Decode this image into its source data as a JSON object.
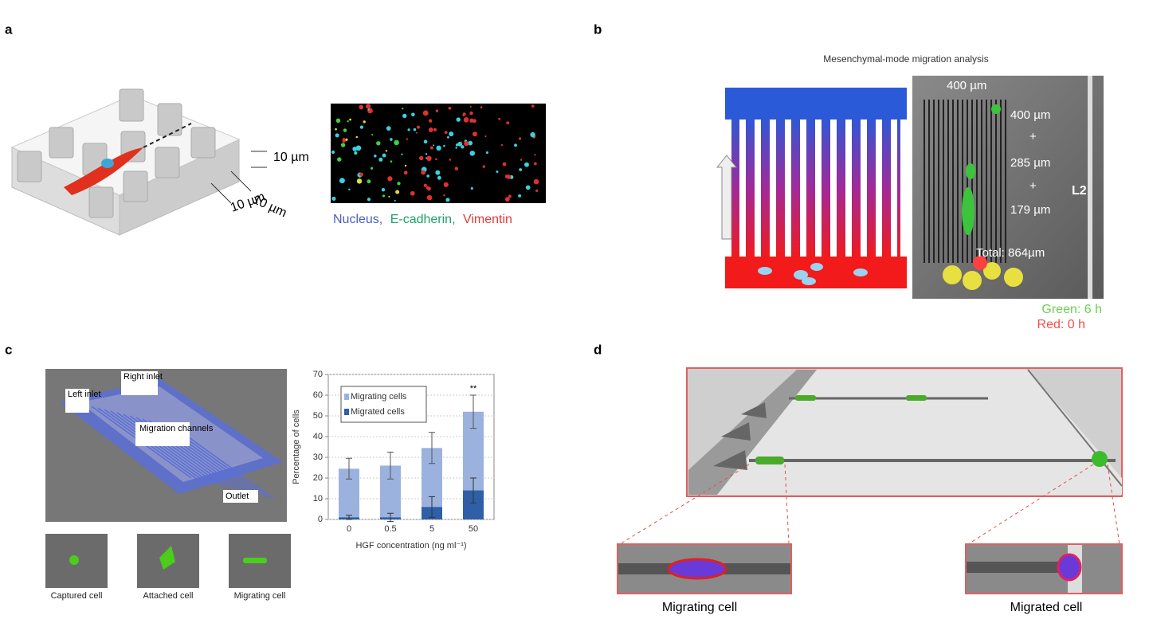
{
  "panels": {
    "a": {
      "label": "a",
      "dims": [
        "10 µm",
        "10 µm",
        "10 µm"
      ],
      "legend": [
        "Nucleus,",
        "E-cadherin,",
        "Vimentin"
      ]
    },
    "b": {
      "label": "b",
      "title": "Mesenchymal-mode migration analysis",
      "scale": "400 µm",
      "marks": [
        "400 µm",
        "+",
        "285 µm",
        "+",
        "179 µm",
        "Total: 864µm"
      ],
      "channel": "L2",
      "legend": [
        "Green: 6 h",
        "Red: 0 h"
      ]
    },
    "c": {
      "label": "c",
      "device": [
        "Right inlet",
        "Left inlet",
        "Migration channels",
        "Outlet"
      ],
      "captions": [
        "Captured cell",
        "Attached cell",
        "Migrating cell"
      ]
    },
    "d": {
      "label": "d",
      "captions": [
        "Migrating cell",
        "Migrated cell"
      ]
    }
  },
  "chart_data": {
    "type": "bar",
    "categories": [
      "0",
      "0.5",
      "5",
      "50"
    ],
    "series": [
      {
        "name": "Migrating cells",
        "color": "#9bb2de",
        "values": [
          24.5,
          26,
          34.5,
          52
        ],
        "errors": [
          5,
          6.5,
          7.5,
          8
        ]
      },
      {
        "name": "Migrated cells",
        "color": "#2f5fa6",
        "values": [
          1,
          1,
          6,
          14
        ],
        "errors": [
          1,
          2,
          5,
          6
        ]
      }
    ],
    "ylim": [
      0,
      70
    ],
    "yticks": [
      0,
      10,
      20,
      30,
      40,
      50,
      60,
      70
    ],
    "xlabel": "HGF concentration (ng ml⁻¹)",
    "ylabel": "Percentage of cells",
    "annotations": [
      {
        "category": 3,
        "text": "**"
      }
    ],
    "grid": true,
    "legend": "upper left"
  }
}
